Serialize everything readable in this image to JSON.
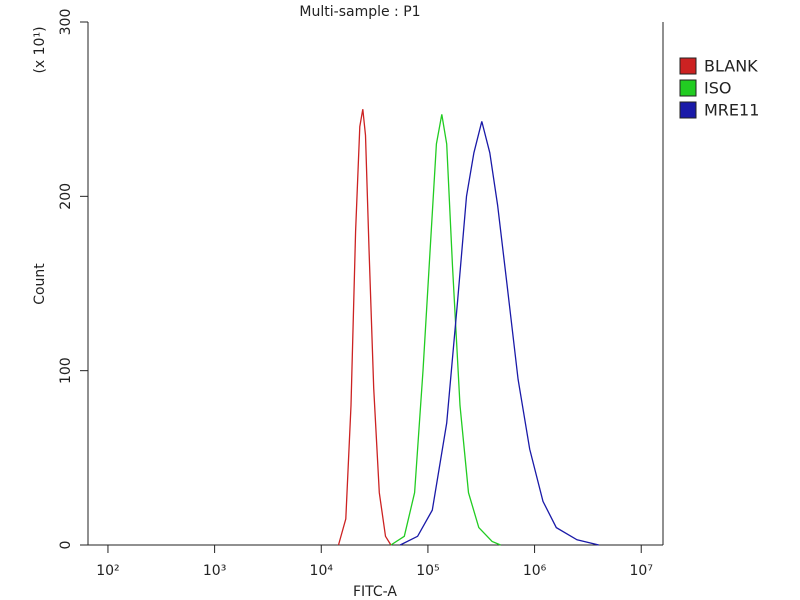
{
  "chart_data": {
    "type": "line",
    "title": "Multi-sample : P1",
    "xlabel": "FITC-A",
    "ylabel": "Count",
    "y_multiplier": "(x 10¹)",
    "xscale": "log",
    "xlim": [
      65,
      16000000
    ],
    "ylim": [
      0,
      300
    ],
    "xticks": [
      {
        "value": 100,
        "label": "10²"
      },
      {
        "value": 1000,
        "label": "10³"
      },
      {
        "value": 10000,
        "label": "10⁴"
      },
      {
        "value": 100000,
        "label": "10⁵"
      },
      {
        "value": 1000000,
        "label": "10⁶"
      },
      {
        "value": 10000000,
        "label": "10⁷"
      }
    ],
    "yticks": [
      0,
      100,
      200,
      300
    ],
    "legend": "right",
    "series": [
      {
        "name": "BLANK",
        "color": "#cc2222",
        "x": [
          14500,
          17000,
          19000,
          21000,
          23000,
          24500,
          26000,
          28000,
          31000,
          35000,
          40000,
          45000
        ],
        "values": [
          0,
          15,
          80,
          180,
          240,
          250,
          235,
          170,
          90,
          30,
          5,
          0
        ]
      },
      {
        "name": "ISO",
        "color": "#22cc22",
        "x": [
          45000,
          60000,
          75000,
          90000,
          105000,
          120000,
          135000,
          150000,
          170000,
          200000,
          240000,
          300000,
          400000,
          480000
        ],
        "values": [
          0,
          5,
          30,
          100,
          170,
          230,
          247,
          230,
          160,
          80,
          30,
          10,
          2,
          0
        ]
      },
      {
        "name": "MRE11",
        "color": "#1a1aa8",
        "x": [
          55000,
          80000,
          110000,
          150000,
          190000,
          230000,
          270000,
          320000,
          380000,
          450000,
          550000,
          700000,
          900000,
          1200000,
          1600000,
          2500000,
          4000000
        ],
        "values": [
          0,
          5,
          20,
          70,
          140,
          200,
          225,
          243,
          225,
          195,
          150,
          95,
          55,
          25,
          10,
          3,
          0
        ]
      }
    ]
  }
}
